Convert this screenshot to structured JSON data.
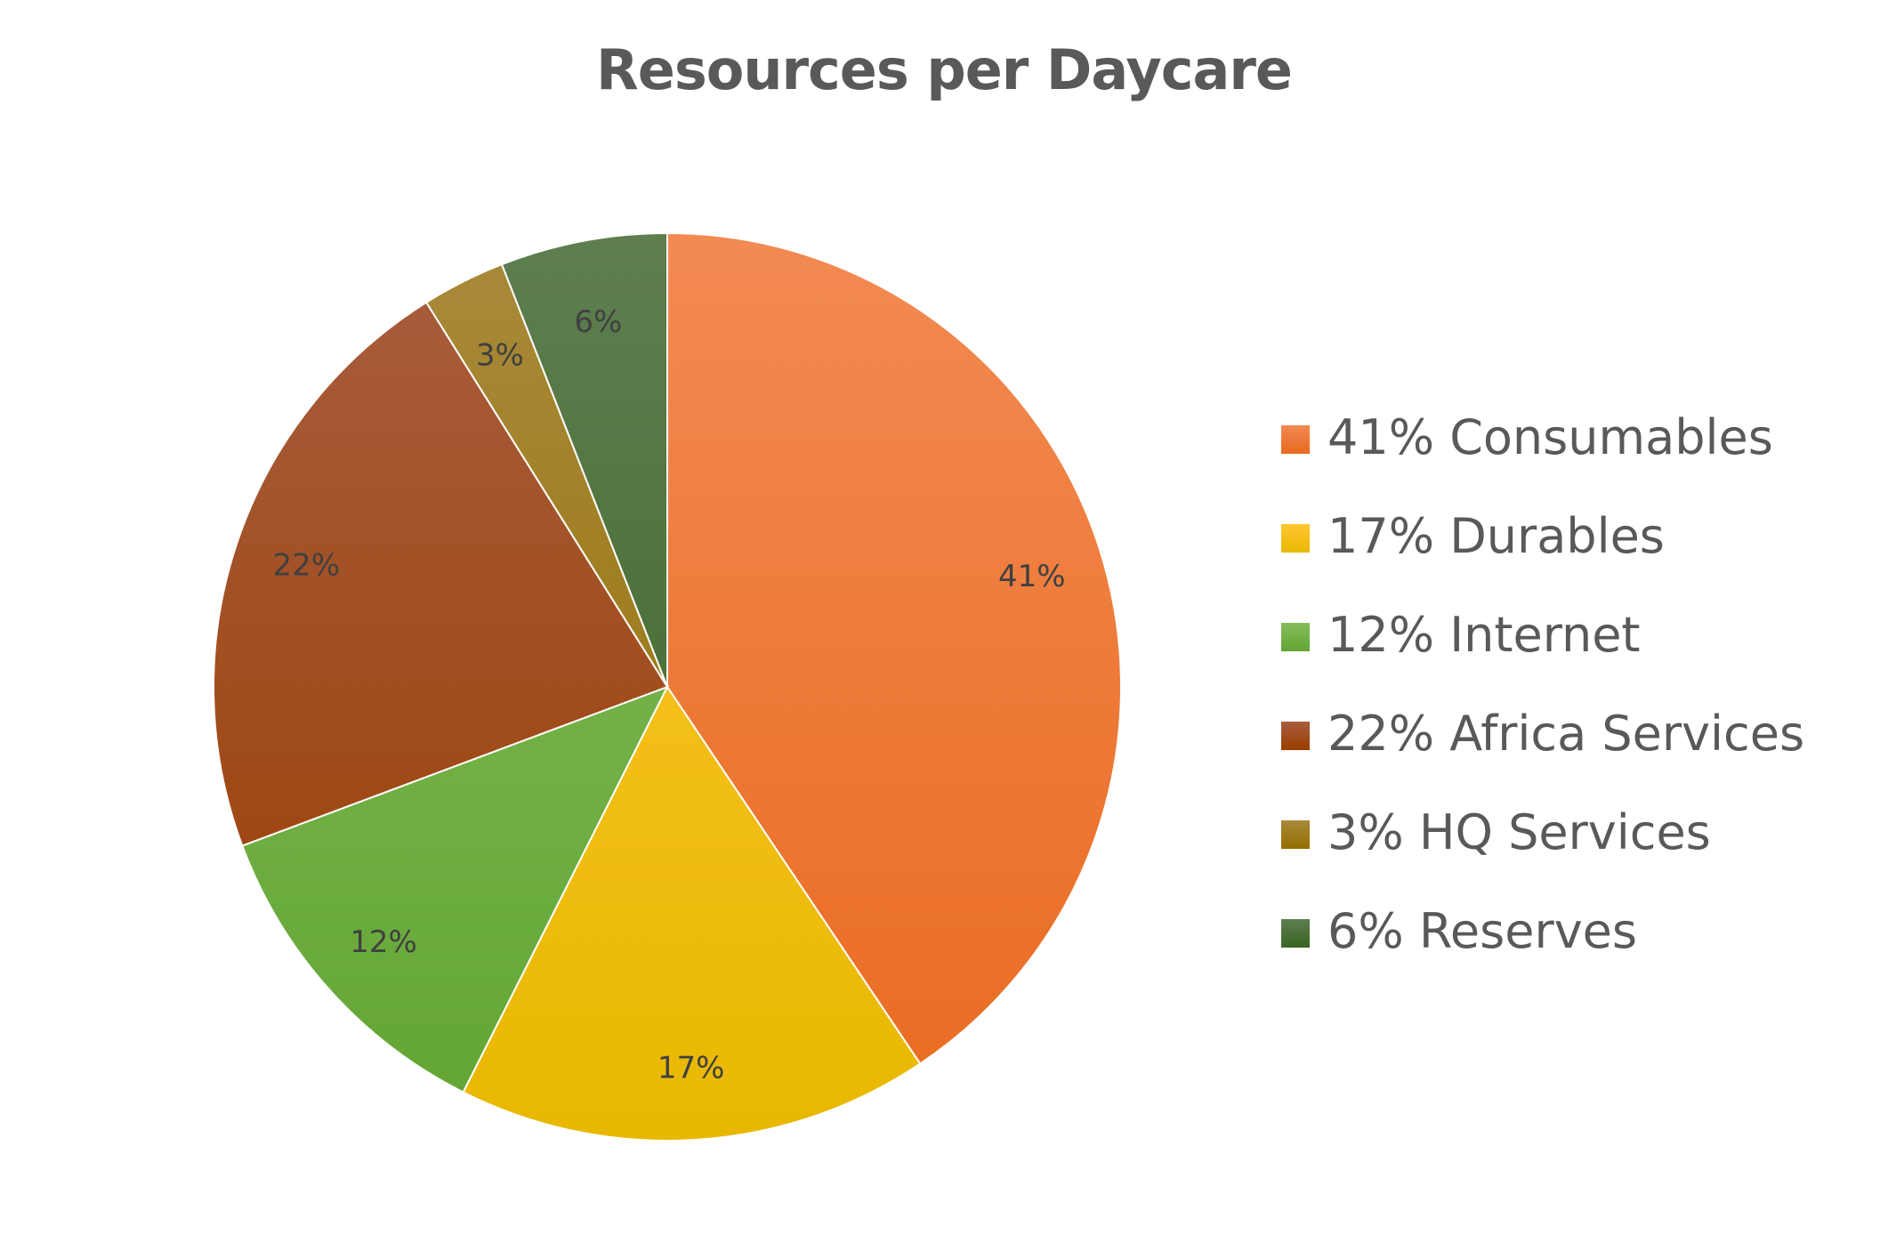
{
  "chart_data": {
    "type": "pie",
    "title": "Resources per Daycare",
    "categories": [
      "Consumables",
      "Durables",
      "Internet",
      "Africa Services",
      "HQ Services",
      "Reserves"
    ],
    "values": [
      41,
      17,
      12,
      22,
      3,
      6
    ],
    "data_labels": [
      "41%",
      "17%",
      "12%",
      "22%",
      "3%",
      "6%"
    ],
    "legend": [
      "41% Consumables",
      "17% Durables",
      "12% Internet",
      "22% Africa Services",
      "3% HQ Services",
      "6% Reserves"
    ],
    "legend_position": "right",
    "colors": [
      [
        "#F28A52",
        "#E96A1F"
      ],
      [
        "#FFC733",
        "#E8B800"
      ],
      [
        "#85BE5E",
        "#62A533"
      ],
      [
        "#A85E3E",
        "#9A3D00"
      ],
      [
        "#A88A3A",
        "#946E00"
      ],
      [
        "#5E7E50",
        "#3A6422"
      ]
    ]
  }
}
